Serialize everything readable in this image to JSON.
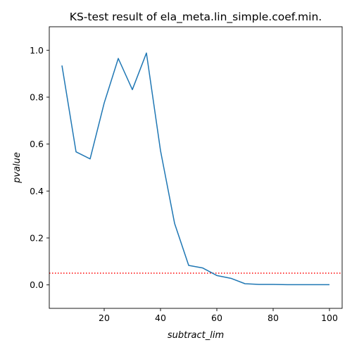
{
  "chart_data": {
    "type": "line",
    "title": "KS-test result of ela_meta.lin_simple.coef.min.",
    "xlabel": "subtract_lim",
    "ylabel": "pvalue",
    "xlim": [
      0.5,
      104.5
    ],
    "ylim": [
      -0.1,
      1.1
    ],
    "xticks": [
      20,
      40,
      60,
      80,
      100
    ],
    "xtick_labels": [
      "20",
      "40",
      "60",
      "80",
      "100"
    ],
    "yticks": [
      0.0,
      0.2,
      0.4,
      0.6,
      0.8,
      1.0
    ],
    "ytick_labels": [
      "0.0",
      "0.2",
      "0.4",
      "0.6",
      "0.8",
      "1.0"
    ],
    "grid": false,
    "series": [
      {
        "color": "#1f77b4",
        "x": [
          5,
          10,
          15,
          20,
          25,
          30,
          35,
          40,
          45,
          50,
          55,
          60,
          65,
          70,
          75,
          80,
          85,
          90,
          95,
          100
        ],
        "y": [
          0.935,
          0.567,
          0.537,
          0.775,
          0.965,
          0.832,
          0.988,
          0.572,
          0.262,
          0.083,
          0.072,
          0.04,
          0.028,
          0.005,
          0.002,
          0.002,
          0.001,
          0.001,
          0.001,
          0.001
        ]
      }
    ],
    "hlines": [
      {
        "y": 0.05,
        "color": "#ff0000",
        "style": "dotted"
      }
    ]
  }
}
